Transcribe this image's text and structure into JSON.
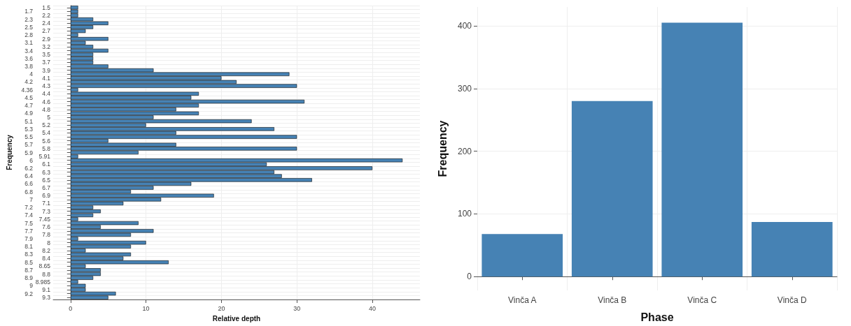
{
  "chart_data": [
    {
      "type": "bar",
      "orientation": "horizontal",
      "xlabel": "Relative depth",
      "ylabel": "Frequency",
      "categories": [
        "1.5",
        "1.7",
        "2.2",
        "2.3",
        "2.4",
        "2.5",
        "2.7",
        "2.8",
        "2.9",
        "3.1",
        "3.2",
        "3.4",
        "3.5",
        "3.6",
        "3.7",
        "3.8",
        "3.9",
        "4",
        "4.1",
        "4.2",
        "4.3",
        "4.36",
        "4.4",
        "4.5",
        "4.6",
        "4.7",
        "4.8",
        "4.9",
        "5",
        "5.1",
        "5.2",
        "5.3",
        "5.4",
        "5.5",
        "5.6",
        "5.7",
        "5.8",
        "5.9",
        "5.91",
        "6",
        "6.1",
        "6.2",
        "6.3",
        "6.4",
        "6.5",
        "6.6",
        "6.7",
        "6.8",
        "6.9",
        "7",
        "7.1",
        "7.2",
        "7.3",
        "7.4",
        "7.45",
        "7.5",
        "7.6",
        "7.7",
        "7.8",
        "7.9",
        "8",
        "8.1",
        "8.2",
        "8.3",
        "8.4",
        "8.5",
        "8.65",
        "8.7",
        "8.8",
        "8.9",
        "8.985",
        "9",
        "9.1",
        "9.2",
        "9.3"
      ],
      "values": [
        1,
        1,
        1,
        3,
        5,
        3,
        2,
        1,
        5,
        2,
        3,
        5,
        3,
        3,
        3,
        5,
        11,
        29,
        20,
        22,
        30,
        1,
        17,
        16,
        31,
        17,
        14,
        17,
        11,
        24,
        10,
        27,
        14,
        30,
        5,
        14,
        30,
        9,
        1,
        44,
        26,
        40,
        27,
        28,
        32,
        16,
        11,
        8,
        19,
        12,
        7,
        3,
        4,
        3,
        1,
        9,
        4,
        11,
        8,
        1,
        10,
        8,
        2,
        8,
        7,
        13,
        2,
        4,
        4,
        3,
        1,
        2,
        2,
        6,
        5
      ],
      "color": "#4682b4",
      "xlim": [
        -2.3,
        46.3
      ],
      "xticks": [
        0,
        10,
        20,
        30,
        40
      ],
      "grid": true
    },
    {
      "type": "bar",
      "xlabel": "Phase",
      "ylabel": "Frequency",
      "categories": [
        "Vinča A",
        "Vinča B",
        "Vinča C",
        "Vinča D"
      ],
      "values": [
        68,
        280,
        405,
        87
      ],
      "color": "#4682b4",
      "ylim": [
        -22,
        430
      ],
      "yticks": [
        0,
        100,
        200,
        300,
        400
      ],
      "grid": true
    }
  ]
}
